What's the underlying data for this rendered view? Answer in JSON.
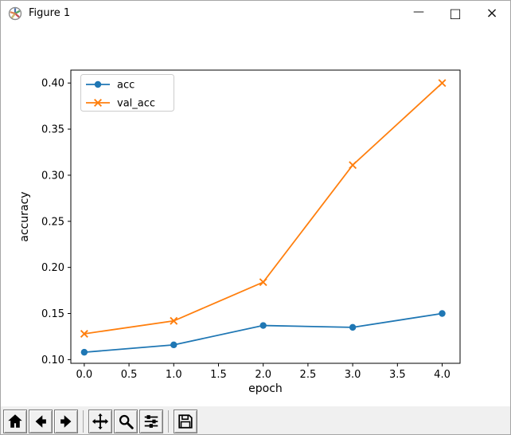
{
  "window": {
    "title": "Figure 1",
    "controls": [
      {
        "name": "minimize",
        "glyph": "—"
      },
      {
        "name": "maximize",
        "glyph": "□"
      },
      {
        "name": "close",
        "glyph": "×"
      }
    ]
  },
  "chart_data": {
    "type": "line",
    "title": "",
    "xlabel": "epoch",
    "ylabel": "accuracy",
    "x": [
      0,
      1,
      2,
      3,
      4
    ],
    "series": [
      {
        "name": "acc",
        "color": "#1f77b4",
        "marker": "o",
        "values": [
          0.108,
          0.116,
          0.137,
          0.135,
          0.15
        ]
      },
      {
        "name": "val_acc",
        "color": "#ff7f0e",
        "marker": "x",
        "values": [
          0.128,
          0.142,
          0.184,
          0.311,
          0.4
        ]
      }
    ],
    "xticks": [
      0.0,
      0.5,
      1.0,
      1.5,
      2.0,
      2.5,
      3.0,
      3.5,
      4.0
    ],
    "xtick_labels": [
      "0.0",
      "0.5",
      "1.0",
      "1.5",
      "2.0",
      "2.5",
      "3.0",
      "3.5",
      "4.0"
    ],
    "yticks": [
      0.1,
      0.15,
      0.2,
      0.25,
      0.3,
      0.35,
      0.4
    ],
    "ytick_labels": [
      "0.10",
      "0.15",
      "0.20",
      "0.25",
      "0.30",
      "0.35",
      "0.40"
    ],
    "xlim": [
      -0.15,
      4.2
    ],
    "ylim": [
      0.096,
      0.414
    ],
    "grid": false,
    "legend": {
      "position": "upper left",
      "entries": [
        "acc",
        "val_acc"
      ]
    }
  },
  "toolbar": {
    "buttons": [
      {
        "name": "home",
        "icon": "home-icon"
      },
      {
        "name": "back",
        "icon": "arrow-left-icon"
      },
      {
        "name": "forward",
        "icon": "arrow-right-icon"
      },
      {
        "name": "pan",
        "icon": "move-icon"
      },
      {
        "name": "zoom",
        "icon": "magnifier-icon"
      },
      {
        "name": "configure-subplots",
        "icon": "sliders-icon"
      },
      {
        "name": "save",
        "icon": "floppy-icon"
      }
    ]
  }
}
